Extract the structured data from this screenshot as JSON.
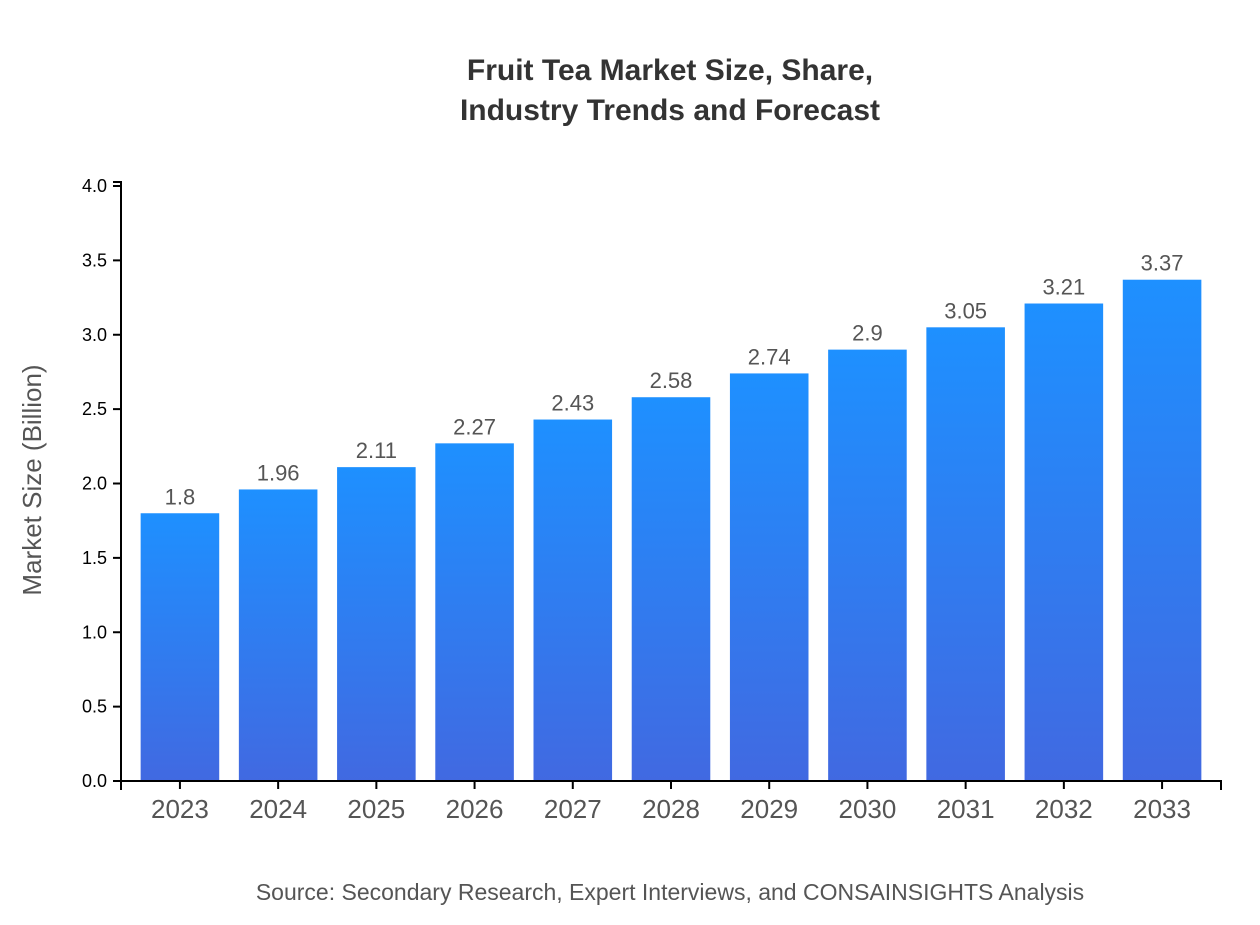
{
  "chart_data": {
    "type": "bar",
    "title_lines": [
      "Fruit Tea Market Size, Share,",
      "Industry Trends and Forecast"
    ],
    "xlabel": "",
    "ylabel": "Market Size (Billion)",
    "categories": [
      "2023",
      "2024",
      "2025",
      "2026",
      "2027",
      "2028",
      "2029",
      "2030",
      "2031",
      "2032",
      "2033"
    ],
    "values": [
      1.8,
      1.96,
      2.11,
      2.27,
      2.43,
      2.58,
      2.74,
      2.9,
      3.05,
      3.21,
      3.37
    ],
    "data_labels": [
      "1.8",
      "1.96",
      "2.11",
      "2.27",
      "2.43",
      "2.58",
      "2.74",
      "2.9",
      "3.05",
      "3.21",
      "3.37"
    ],
    "ylim": [
      0,
      4
    ],
    "yticks": [
      "0.0",
      "0.5",
      "1.0",
      "1.5",
      "2.0",
      "2.5",
      "3.0",
      "3.5",
      "4.0"
    ],
    "grid": false,
    "legend": "none",
    "colors": {
      "bar_top": "#1e90ff",
      "bar_bottom": "#4169e1",
      "title": "#333333",
      "label": "#555555"
    },
    "source": "Source: Secondary Research, Expert Interviews, and CONSAINSIGHTS Analysis"
  }
}
